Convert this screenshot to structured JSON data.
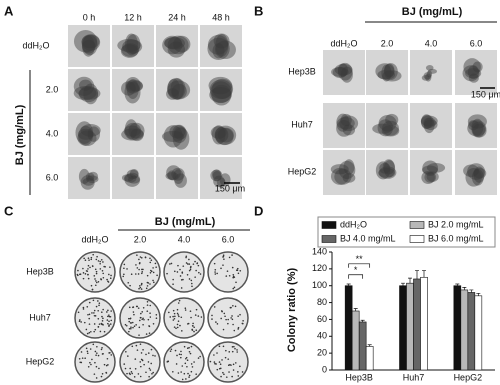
{
  "panels": [
    {
      "label": "A",
      "group_label": "BJ (mg/mL)",
      "columns": [
        "0 h",
        "12 h",
        "24 h",
        "48 h"
      ],
      "rows": [
        "ddH₂O",
        "2.0",
        "4.0",
        "6.0"
      ],
      "scale_bar": "150 μm"
    },
    {
      "label": "B",
      "group_label": "BJ (mg/mL)",
      "columns": [
        "ddH₂O",
        "2.0",
        "4.0",
        "6.0"
      ],
      "rows": [
        "Hep3B",
        "Huh7",
        "HepG2"
      ],
      "scale_bar": "150 μm"
    },
    {
      "label": "C",
      "group_label": "BJ (mg/mL)",
      "columns": [
        "ddH₂O",
        "2.0",
        "4.0",
        "6.0"
      ],
      "rows": [
        "Hep3B",
        "Huh7",
        "HepG2"
      ]
    }
  ],
  "chart_data": {
    "panel_label": "D",
    "type": "bar",
    "ylabel": "Colony ratio (%)",
    "categories": [
      "Hep3B",
      "Huh7",
      "HepG2"
    ],
    "series": [
      {
        "name": "ddH₂O",
        "color": "#111111",
        "values": [
          100,
          100,
          100
        ],
        "errors": [
          2,
          3,
          2
        ]
      },
      {
        "name": "BJ 2.0 mg/mL",
        "color": "#b8b8b8",
        "values": [
          70,
          103,
          95
        ],
        "errors": [
          3,
          6,
          3
        ]
      },
      {
        "name": "BJ 4.0 mg/mL",
        "color": "#666666",
        "values": [
          57,
          108,
          92
        ],
        "errors": [
          2,
          10,
          3
        ]
      },
      {
        "name": "BJ 6.0 mg/mL",
        "color": "#ffffff",
        "values": [
          28,
          110,
          88
        ],
        "errors": [
          2,
          8,
          3
        ]
      }
    ],
    "ylim": [
      0,
      140
    ],
    "yticks": [
      0,
      20,
      40,
      60,
      80,
      100,
      120,
      140
    ],
    "annotations": [
      "**",
      "*"
    ]
  }
}
